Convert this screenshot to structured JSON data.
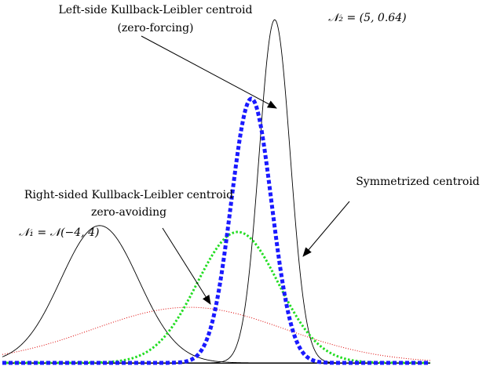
{
  "chart_data": {
    "type": "line",
    "xlim": [
      -9,
      13
    ],
    "ylim": [
      0,
      0.5
    ],
    "grid": false,
    "series": [
      {
        "name": "𝒩₁ = 𝒩(−4, 4)",
        "distribution": "gaussian",
        "mean": -4,
        "variance": 4,
        "color": "#000000",
        "style": "solid"
      },
      {
        "name": "𝒩₂ = (5, 0.64)",
        "distribution": "gaussian",
        "mean": 5,
        "variance": 0.64,
        "color": "#000000",
        "style": "solid"
      },
      {
        "name": "Left-side Kullback-Leibler centroid (zero-forcing)",
        "distribution": "gaussian",
        "mean": 3.8,
        "variance": 1.08,
        "color": "#1a1aff",
        "style": "thick-dashed"
      },
      {
        "name": "Symmetrized centroid",
        "distribution": "gaussian",
        "mean": 3.1,
        "variance": 4.4,
        "color": "#22dd22",
        "style": "dotted"
      },
      {
        "name": "Right-sided Kullback-Leibler centroid zero-avoiding",
        "distribution": "gaussian",
        "mean": 0.6,
        "variance": 24.4,
        "color": "#dd0000",
        "style": "thin-dotted"
      }
    ],
    "annotations": {
      "left_kl_line1": "Left-side Kullback-Leibler centroid",
      "left_kl_line2": "(zero-forcing)",
      "n2_label": "𝒩₂ = (5, 0.64)",
      "right_kl_line1": "Right-sided Kullback-Leibler centroid",
      "right_kl_line2": "zero-avoiding",
      "n1_label": "𝒩₁ = 𝒩(−4, 4)",
      "sym_label": "Symmetrized centroid"
    }
  }
}
